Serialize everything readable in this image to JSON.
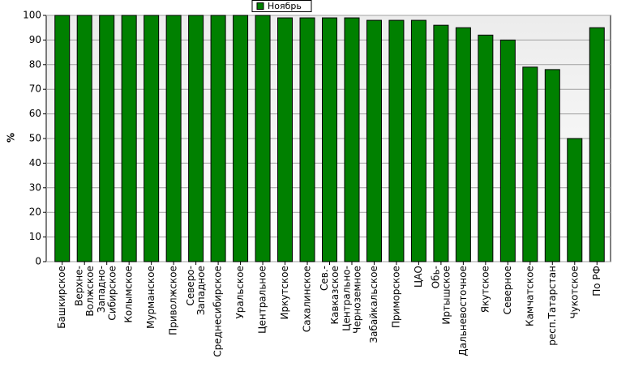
{
  "chart_data": {
    "type": "bar",
    "ylabel": "%",
    "categories": [
      "Башкирское",
      "Верхне-Волжское",
      "Западно-Сибирское",
      "Колымское",
      "Мурманское",
      "Приволжское",
      "Северо-Западное",
      "Среднесибирское",
      "Уральское",
      "Центральное",
      "Иркутское",
      "Сахалинское",
      "Сев.-Кавказское",
      "Центрально-Черноземное",
      "Забайкальское",
      "Приморское",
      "ЦАО",
      "Обь-Иртышское",
      "Дальневосточное",
      "Якутское",
      "Северное",
      "Камчатское",
      "респ.Татарстан",
      "Чукотское",
      "По РФ"
    ],
    "series": [
      {
        "name": "Ноябрь",
        "color": "#008000",
        "values": [
          100,
          100,
          100,
          100,
          100,
          100,
          100,
          100,
          100,
          100,
          99,
          99,
          99,
          99,
          98,
          98,
          98,
          96,
          95,
          92,
          90,
          79,
          78,
          50,
          95
        ]
      }
    ],
    "ylim": [
      0,
      100
    ],
    "yticks": [
      0,
      10,
      20,
      30,
      40,
      50,
      60,
      70,
      80,
      90,
      100
    ],
    "grid": true,
    "legend": "top"
  }
}
